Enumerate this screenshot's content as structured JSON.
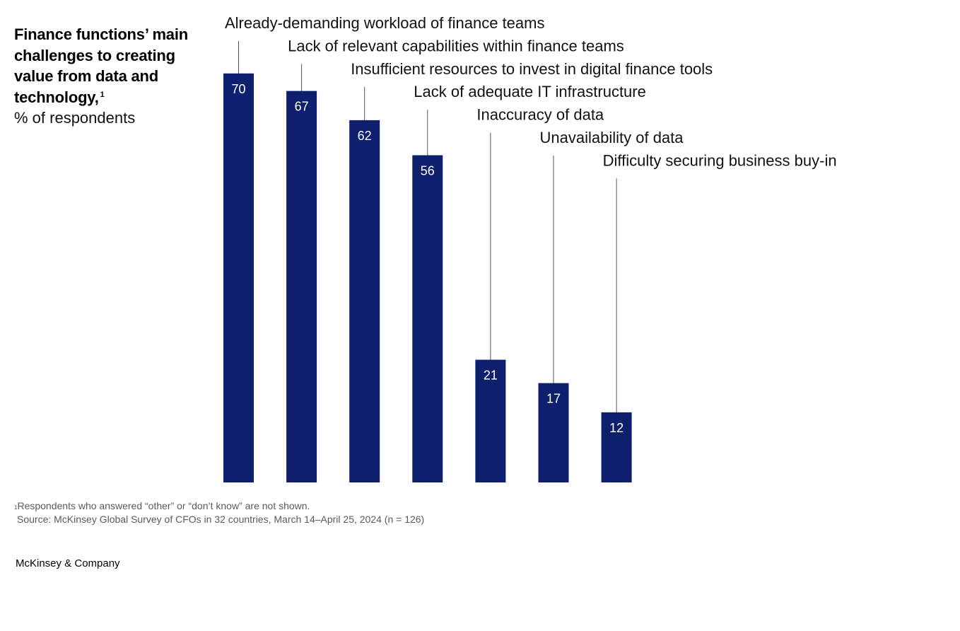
{
  "header": {
    "title": "Finance functions’ main challenges to creating value from data and technology,",
    "title_footnote_marker": "1",
    "subtitle": "% of respondents"
  },
  "chart_data": {
    "type": "bar",
    "title": "Finance functions’ main challenges to creating value from data and technology",
    "ylabel": "% of respondents",
    "xlabel": "",
    "ylim": [
      0,
      100
    ],
    "grid": false,
    "bar_color": "#0e1f6e",
    "leader_line_color": "#555555",
    "categories": [
      "Already-demanding workload of finance teams",
      "Lack of relevant capabilities within finance teams",
      "Insufficient resources to invest in digital finance tools",
      "Lack of adequate IT infrastructure",
      "Inaccuracy of data",
      "Unavailability of data",
      "Difficulty securing business buy-in"
    ],
    "values": [
      70,
      67,
      62,
      56,
      21,
      17,
      12
    ]
  },
  "footnotes": {
    "marker": "1",
    "note": "Respondents who answered “other” or “don’t know” are not shown.",
    "source": "Source: McKinsey Global Survey of CFOs in 32 countries, March 14–April 25, 2024 (n = 126)"
  },
  "brand": {
    "name": "McKinsey & Company"
  }
}
